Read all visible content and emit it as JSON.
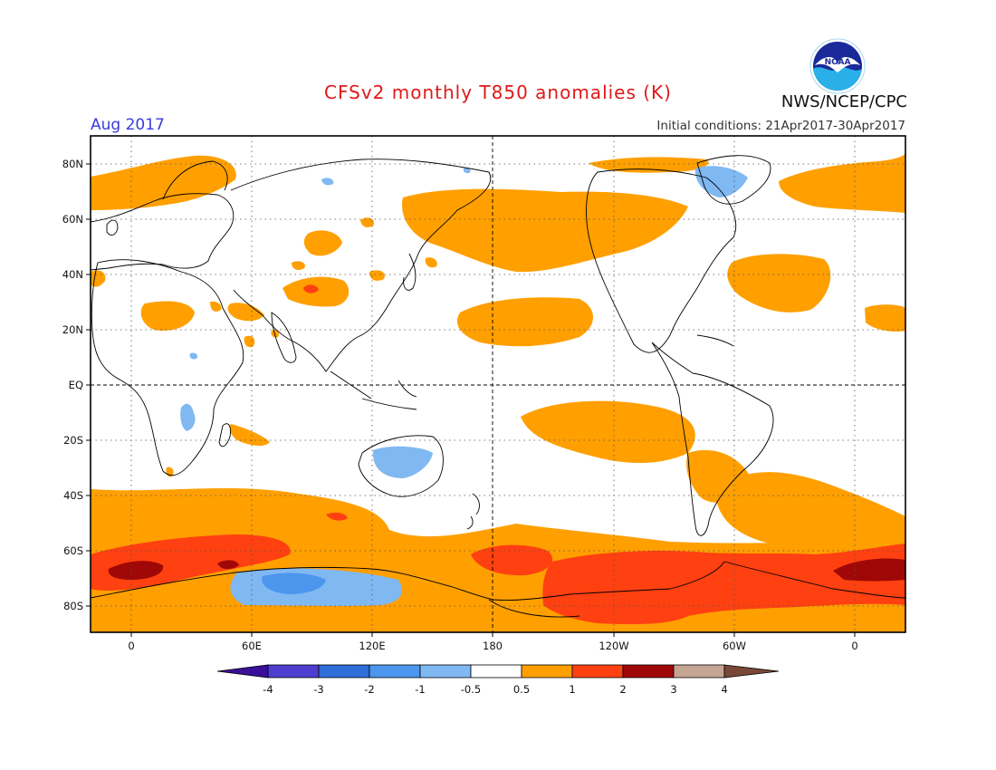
{
  "header": {
    "title": "CFSv2 monthly T850 anomalies (K)",
    "agency": "NWS/NCEP/CPC",
    "logo_text": "NOAA",
    "period": "Aug 2017",
    "initial_conditions": "Initial conditions: 21Apr2017-30Apr2017"
  },
  "map": {
    "projection": "cylindrical equidistant, centered on 180",
    "longitude_range": [
      -20,
      380
    ],
    "latitude_range": [
      -90,
      90
    ],
    "lat_labels": [
      "80N",
      "60N",
      "40N",
      "20N",
      "EQ",
      "20S",
      "40S",
      "60S",
      "80S"
    ],
    "lon_labels": [
      "0",
      "60E",
      "120E",
      "180",
      "120W",
      "60W",
      "0"
    ],
    "grid": "dotted",
    "reference_lines": [
      "equator dashed",
      "180 meridian dashed"
    ]
  },
  "colorbar": {
    "labels": [
      "-4",
      "-3",
      "-2",
      "-1",
      "-0.5",
      "0.5",
      "1",
      "2",
      "3",
      "4"
    ],
    "colors": [
      "#3b0f9a",
      "#4d3ed0",
      "#2f6ed8",
      "#4c96ee",
      "#80b8f2",
      "#ffffff",
      "#ff9f00",
      "#ff4010",
      "#a00808",
      "#c6a493",
      "#7a4838"
    ]
  },
  "anomaly_regions": [
    {
      "name": "Southern Ocean warm belt",
      "level": "0.5 to 1"
    },
    {
      "name": "Weddell / Bellingshausen maximum",
      "level": "1 to 2"
    },
    {
      "name": "Antarctic coast near 0E",
      "level": "2 to 3"
    },
    {
      "name": "East Antarctica cool anomaly",
      "level": "-0.5 to -1"
    },
    {
      "name": "Central Australia cool anomaly",
      "level": "-0.5 to -1"
    },
    {
      "name": "Greenland / Baffin cool anomaly",
      "level": "-0.5 to -1"
    },
    {
      "name": "Tibetan Plateau warm spot",
      "level": "1 to 2"
    },
    {
      "name": "North Pacific warm band",
      "level": "0.5 to 1"
    },
    {
      "name": "South Pacific warm band",
      "level": "0.5 to 1"
    }
  ]
}
